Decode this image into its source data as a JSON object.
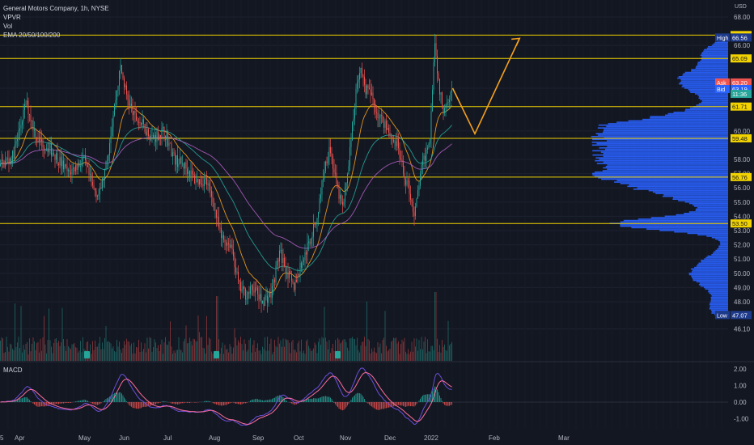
{
  "legend": {
    "title": "General Motors Company, 1h, NYSE",
    "indicators": [
      "VPVR",
      "Vol",
      "EMA 20/50/100/200"
    ]
  },
  "currency": "USD",
  "macd_label": "MACD",
  "price_axis": {
    "ticks": [
      "68.00",
      "66.00",
      "63.00",
      "60.00",
      "58.00",
      "57.00",
      "56.00",
      "55.00",
      "54.00",
      "53.00",
      "52.00",
      "51.00",
      "50.00",
      "49.00",
      "48.00",
      "46.10"
    ],
    "tick_values": [
      68,
      66,
      63,
      60,
      58,
      57,
      56,
      55,
      54,
      53,
      52,
      51,
      50,
      49,
      48,
      46.1
    ]
  },
  "macd_axis": {
    "ticks": [
      "2.00",
      "1.00",
      "0.00",
      "-1.00"
    ],
    "tick_values": [
      2,
      1,
      0,
      -1
    ]
  },
  "time_axis": [
    "5",
    "Apr",
    "May",
    "Jun",
    "Jul",
    "Aug",
    "Sep",
    "Oct",
    "Nov",
    "Dec",
    "2022",
    "Feb",
    "Mar"
  ],
  "level_tags": [
    {
      "text": "66.73",
      "value": 66.73,
      "kind": "level"
    },
    {
      "text": "65.09",
      "value": 65.09,
      "kind": "level"
    },
    {
      "text": "61.71",
      "value": 61.71,
      "kind": "level"
    },
    {
      "text": "59.48",
      "value": 59.48,
      "kind": "level"
    },
    {
      "text": "56.76",
      "value": 56.76,
      "kind": "level"
    },
    {
      "text": "53.50",
      "value": 53.5,
      "kind": "level"
    }
  ],
  "quote_tags": [
    {
      "key": "High",
      "text": "66.56",
      "value": 66.56
    },
    {
      "key": "Ask",
      "text": "63.20",
      "value": 63.2
    },
    {
      "key": "Bid",
      "text": "63.19",
      "value": 63.19
    },
    {
      "key": "",
      "text": "11:36",
      "value": 62.6
    },
    {
      "key": "Low",
      "text": "47.07",
      "value": 47.07
    }
  ],
  "colors": {
    "background": "#131722",
    "level_line": "#f2d300",
    "up": "#26a69a",
    "down": "#ef5350",
    "vpvr": "#2962ff",
    "projection": "#f7a21b",
    "ema_fast": "#f7a21b",
    "ema_mid": "#26a69a",
    "ema_slow": "#b05ec2",
    "macd_line": "#6a4fd8",
    "signal_line": "#ff6d9e"
  },
  "chart_data": {
    "type": "line",
    "title": "General Motors Company, 1h, NYSE",
    "ylabel": "USD",
    "ylim": [
      46.1,
      68
    ],
    "horizontal_levels": [
      66.73,
      65.09,
      61.71,
      59.48,
      56.76,
      53.5
    ],
    "series": [
      {
        "name": "Price",
        "points": [
          [
            "Mar 15",
            53.5
          ],
          [
            "Mar 20",
            57.5
          ],
          [
            "Mar 28",
            58.2
          ],
          [
            "Apr 5",
            62.0
          ],
          [
            "Apr 10",
            59.5
          ],
          [
            "Apr 18",
            58.5
          ],
          [
            "Apr 25",
            57.0
          ],
          [
            "May 3",
            58.0
          ],
          [
            "May 10",
            56.0
          ],
          [
            "May 15",
            55.5
          ],
          [
            "May 20",
            57.5
          ],
          [
            "May 26",
            61.5
          ],
          [
            "Jun 1",
            64.5
          ],
          [
            "Jun 5",
            62.5
          ],
          [
            "Jun 10",
            61.0
          ],
          [
            "Jun 15",
            60.5
          ],
          [
            "Jun 22",
            59.5
          ],
          [
            "Jun 30",
            60.0
          ],
          [
            "Jul 7",
            58.0
          ],
          [
            "Jul 14",
            57.5
          ],
          [
            "Jul 21",
            56.5
          ],
          [
            "Jul 28",
            56.5
          ],
          [
            "Aug 3",
            55.0
          ],
          [
            "Aug 8",
            52.5
          ],
          [
            "Aug 15",
            52.0
          ],
          [
            "Aug 20",
            49.0
          ],
          [
            "Aug 25",
            48.5
          ],
          [
            "Aug 30",
            49.0
          ],
          [
            "Sep 5",
            48.0
          ],
          [
            "Sep 12",
            48.5
          ],
          [
            "Sep 18",
            51.5
          ],
          [
            "Sep 22",
            50.5
          ],
          [
            "Sep 28",
            49.0
          ],
          [
            "Oct 3",
            50.5
          ],
          [
            "Oct 8",
            52.0
          ],
          [
            "Oct 14",
            54.0
          ],
          [
            "Oct 18",
            57.0
          ],
          [
            "Oct 22",
            59.0
          ],
          [
            "Oct 27",
            56.0
          ],
          [
            "Nov 1",
            54.5
          ],
          [
            "Nov 5",
            58.0
          ],
          [
            "Nov 9",
            62.0
          ],
          [
            "Nov 12",
            64.5
          ],
          [
            "Nov 16",
            63.0
          ],
          [
            "Nov 20",
            62.5
          ],
          [
            "Nov 25",
            61.0
          ],
          [
            "Nov 30",
            60.5
          ],
          [
            "Dec 4",
            59.5
          ],
          [
            "Dec 8",
            59.0
          ],
          [
            "Dec 12",
            57.0
          ],
          [
            "Dec 16",
            56.0
          ],
          [
            "Dec 20",
            54.0
          ],
          [
            "Dec 24",
            57.0
          ],
          [
            "Dec 28",
            58.5
          ],
          [
            "Dec 31",
            60.0
          ],
          [
            "Jan 3",
            66.5
          ],
          [
            "Jan 5",
            63.5
          ],
          [
            "Jan 7",
            61.5
          ],
          [
            "Jan 10",
            62.5
          ],
          [
            "Jan 12",
            63.0
          ]
        ]
      },
      {
        "name": "Projection",
        "points": [
          [
            "Jan 12",
            63.0
          ],
          [
            "Jan 23",
            59.8
          ],
          [
            "Feb 13",
            66.5
          ]
        ]
      }
    ],
    "volume_profile_note": "VPVR histogram on right side",
    "macd_ylim": [
      -1.3,
      2.2
    ]
  }
}
